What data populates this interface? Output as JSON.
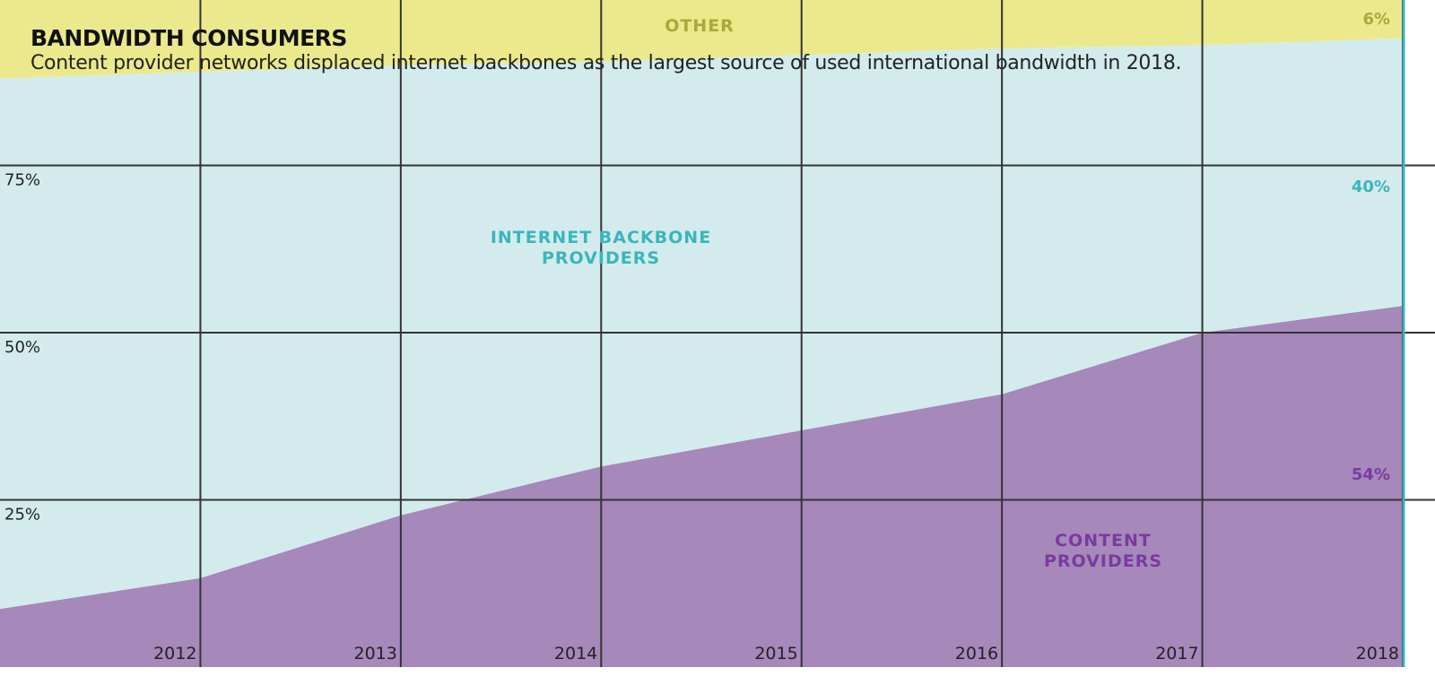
{
  "chart_data": {
    "type": "stacked_area",
    "title": "BANDWIDTH CONSUMERS",
    "subtitle": "Content provider networks displaced internet backbones as the largest source of used international bandwidth in 2018.",
    "x": [
      2011,
      2012,
      2013,
      2014,
      2015,
      2016,
      2017,
      2018
    ],
    "xlim": [
      2011,
      2018
    ],
    "xticks": [
      2012,
      2013,
      2014,
      2015,
      2016,
      2017,
      2018
    ],
    "ylim": [
      0,
      100
    ],
    "yticks": [
      {
        "value": 25,
        "label": "25%"
      },
      {
        "value": 50,
        "label": "50%"
      },
      {
        "value": 75,
        "label": "75%"
      }
    ],
    "grid": true,
    "series": [
      {
        "name": "CONTENT PROVIDERS",
        "color": "#a688bb",
        "label_color": "#7b3aa0",
        "values": [
          8.7,
          13.3,
          22.7,
          30,
          35.4,
          40.8,
          50,
          54
        ],
        "value_labels": [
          null,
          null,
          null,
          null,
          null,
          null,
          null,
          "54%"
        ]
      },
      {
        "name": "INTERNET BACKBONE PROVIDERS",
        "color": "#d3ebec",
        "label_color": "#3ab5bd",
        "values": [
          79.3,
          75.7,
          67.3,
          60.5,
          56.1,
          51.7,
          43,
          40
        ],
        "value_labels": [
          null,
          null,
          null,
          null,
          null,
          null,
          null,
          "40%"
        ]
      },
      {
        "name": "OTHER",
        "color": "#ebe98c",
        "label_color": "#a9a83a",
        "values": [
          12,
          11,
          10,
          9.5,
          8.5,
          7.5,
          7,
          6
        ],
        "value_labels": [
          null,
          null,
          null,
          null,
          null,
          null,
          null,
          "6%"
        ]
      }
    ]
  }
}
